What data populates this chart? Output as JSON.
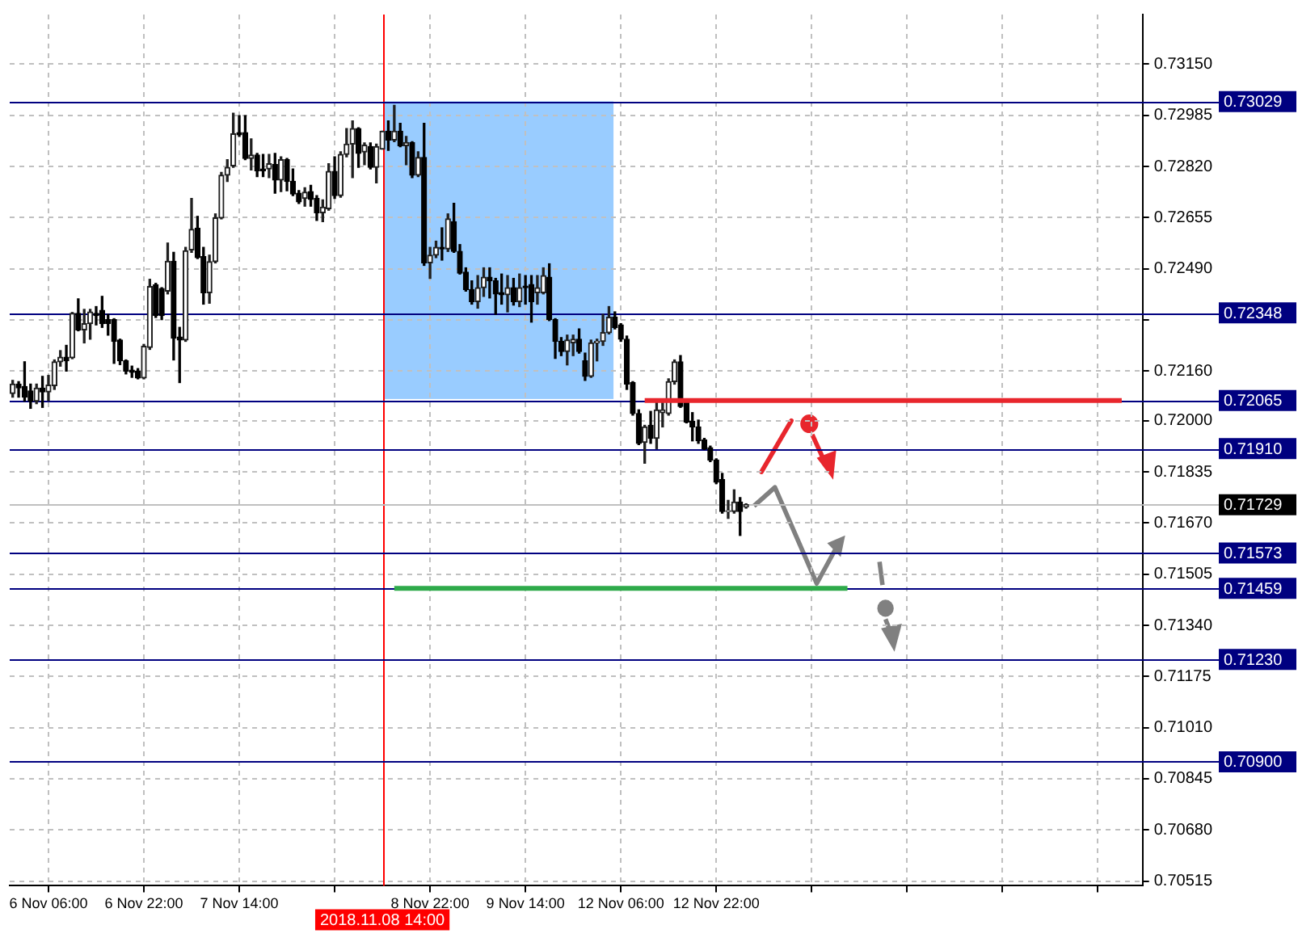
{
  "chart_data": {
    "type": "candlestick",
    "categories": [
      null,
      null,
      null,
      null,
      null,
      null,
      "6 Nov 06:00",
      null,
      null,
      null,
      null,
      null,
      null,
      null,
      null,
      null,
      null,
      null,
      null,
      null,
      null,
      null,
      "6 Nov 22:00",
      null,
      null,
      null,
      null,
      null,
      null,
      null,
      null,
      null,
      null,
      null,
      null,
      null,
      null,
      null,
      "7 Nov 14:00",
      null,
      null,
      null,
      null,
      null,
      null,
      null,
      null,
      null,
      null,
      null,
      null,
      null,
      null,
      null,
      null,
      null,
      null,
      null,
      null,
      null,
      null,
      null,
      "2018.11.08 14:00",
      null,
      null,
      null,
      null,
      null,
      null,
      null,
      "8 Nov 22:00",
      null,
      null,
      null,
      null,
      null,
      null,
      null,
      null,
      null,
      null,
      null,
      null,
      null,
      null,
      null,
      "9 Nov 14:00",
      null,
      null,
      null,
      null,
      null,
      null,
      null,
      null,
      null,
      null,
      null,
      null,
      null,
      null,
      null,
      "12 Nov 06:00",
      null,
      null,
      null,
      null,
      null,
      null,
      null,
      null,
      null,
      null,
      null,
      null,
      null,
      null,
      null,
      "12 Nov 22:00",
      null,
      null,
      null,
      null,
      null,
      null,
      null,
      null,
      null,
      null,
      null,
      null,
      null,
      null,
      null,
      null,
      null,
      null,
      null,
      null,
      null,
      null,
      null,
      null,
      null,
      null,
      null,
      null,
      null,
      null,
      null,
      null,
      null,
      null,
      null,
      null,
      null,
      null,
      null,
      null,
      null,
      null,
      null,
      null,
      null,
      null,
      null,
      null,
      null,
      null,
      null,
      null,
      null,
      null,
      null,
      null,
      null,
      null,
      null,
      null,
      null,
      null,
      null,
      null,
      null,
      null,
      null,
      null,
      null,
      null,
      null
    ],
    "ohlc": [
      [
        0.72088,
        0.7213,
        0.72076,
        0.72118
      ],
      [
        0.72118,
        0.72126,
        0.72076,
        0.72106
      ],
      [
        0.7211,
        0.7219,
        0.72063,
        0.72076
      ],
      [
        0.72096,
        0.72118,
        0.7204,
        0.72063
      ],
      [
        0.72063,
        0.72118,
        0.72055,
        0.72105
      ],
      [
        0.72105,
        0.72143,
        0.72043,
        0.72093
      ],
      [
        0.72093,
        0.72146,
        0.72065,
        0.72115
      ],
      [
        0.72113,
        0.72196,
        0.72101,
        0.7219
      ],
      [
        0.7219,
        0.72226,
        0.72176,
        0.72205
      ],
      [
        0.72205,
        0.72243,
        0.7216,
        0.72193
      ],
      [
        0.72203,
        0.72349,
        0.722,
        0.72346
      ],
      [
        0.72346,
        0.72393,
        0.7229,
        0.72293
      ],
      [
        0.72293,
        0.72359,
        0.72251,
        0.72313
      ],
      [
        0.72313,
        0.72359,
        0.72263,
        0.72351
      ],
      [
        0.72346,
        0.72368,
        0.72309,
        0.72339
      ],
      [
        0.72356,
        0.72401,
        0.72301,
        0.72313
      ],
      [
        0.72326,
        0.72343,
        0.72276,
        0.72314
      ],
      [
        0.72326,
        0.72329,
        0.72185,
        0.72256
      ],
      [
        0.7226,
        0.72263,
        0.72181,
        0.72193
      ],
      [
        0.72193,
        0.72196,
        0.72151,
        0.7216
      ],
      [
        0.72163,
        0.72176,
        0.7214,
        0.72156
      ],
      [
        0.7216,
        0.72168,
        0.72135,
        0.72138
      ],
      [
        0.72138,
        0.72246,
        0.72135,
        0.7224
      ],
      [
        0.72236,
        0.72456,
        0.7223,
        0.72433
      ],
      [
        0.72438,
        0.72443,
        0.72333,
        0.72339
      ],
      [
        0.72426,
        0.72429,
        0.72326,
        0.72339
      ],
      [
        0.72418,
        0.72573,
        0.72409,
        0.72514
      ],
      [
        0.72514,
        0.72543,
        0.72196,
        0.72266
      ],
      [
        0.7227,
        0.72301,
        0.72123,
        0.7226
      ],
      [
        0.7226,
        0.72559,
        0.72256,
        0.72548
      ],
      [
        0.72551,
        0.72717,
        0.72543,
        0.72617
      ],
      [
        0.72621,
        0.72659,
        0.72523,
        0.72526
      ],
      [
        0.72529,
        0.72559,
        0.72376,
        0.72413
      ],
      [
        0.72413,
        0.72534,
        0.72379,
        0.72513
      ],
      [
        0.72513,
        0.72667,
        0.72509,
        0.72654
      ],
      [
        0.72654,
        0.72801,
        0.72651,
        0.72792
      ],
      [
        0.72792,
        0.72842,
        0.72772,
        0.72817
      ],
      [
        0.72822,
        0.72992,
        0.72817,
        0.72925
      ],
      [
        0.72929,
        0.72984,
        0.72917,
        0.72922
      ],
      [
        0.72929,
        0.72984,
        0.72842,
        0.72846
      ],
      [
        0.72846,
        0.72909,
        0.72809,
        0.72857
      ],
      [
        0.72857,
        0.72862,
        0.72787,
        0.72806
      ],
      [
        0.72812,
        0.72859,
        0.72787,
        0.72806
      ],
      [
        0.72812,
        0.72859,
        0.72784,
        0.72829
      ],
      [
        0.72826,
        0.72862,
        0.72734,
        0.72776
      ],
      [
        0.72776,
        0.72851,
        0.72739,
        0.72842
      ],
      [
        0.72842,
        0.72846,
        0.72742,
        0.72772
      ],
      [
        0.72772,
        0.72812,
        0.72726,
        0.72731
      ],
      [
        0.72734,
        0.72742,
        0.72701,
        0.72706
      ],
      [
        0.72717,
        0.72751,
        0.72692,
        0.72737
      ],
      [
        0.72739,
        0.72759,
        0.72692,
        0.72714
      ],
      [
        0.72717,
        0.72726,
        0.72646,
        0.72671
      ],
      [
        0.72671,
        0.72712,
        0.72642,
        0.72689
      ],
      [
        0.72684,
        0.72829,
        0.72679,
        0.72804
      ],
      [
        0.72804,
        0.72851,
        0.72717,
        0.72726
      ],
      [
        0.72726,
        0.72867,
        0.72721,
        0.72859
      ],
      [
        0.72859,
        0.72942,
        0.72851,
        0.72892
      ],
      [
        0.72892,
        0.72967,
        0.72784,
        0.72942
      ],
      [
        0.72942,
        0.72945,
        0.72817,
        0.72862
      ],
      [
        0.72867,
        0.72896,
        0.72826,
        0.72889
      ],
      [
        0.72884,
        0.72896,
        0.72812,
        0.72817
      ],
      [
        0.72817,
        0.72892,
        0.72767,
        0.72884
      ],
      [
        0.72876,
        0.72934,
        0.72876,
        0.72934
      ],
      [
        0.72934,
        0.72967,
        0.72872,
        0.72905
      ],
      [
        0.72905,
        0.73017,
        0.729,
        0.72934
      ],
      [
        0.72934,
        0.72959,
        0.72884,
        0.72887
      ],
      [
        0.72887,
        0.72917,
        0.72826,
        0.72897
      ],
      [
        0.72897,
        0.729,
        0.72784,
        0.72792
      ],
      [
        0.72792,
        0.72867,
        0.72787,
        0.72849
      ],
      [
        0.72849,
        0.72959,
        0.72501,
        0.72509
      ],
      [
        0.72509,
        0.72559,
        0.72459,
        0.72534
      ],
      [
        0.72534,
        0.72579,
        0.72526,
        0.72559
      ],
      [
        0.72559,
        0.72622,
        0.72518,
        0.72554
      ],
      [
        0.72554,
        0.72667,
        0.72546,
        0.72651
      ],
      [
        0.72642,
        0.72701,
        0.72543,
        0.72546
      ],
      [
        0.72546,
        0.72568,
        0.72473,
        0.72476
      ],
      [
        0.72479,
        0.72493,
        0.72418,
        0.72423
      ],
      [
        0.72423,
        0.72451,
        0.72376,
        0.72384
      ],
      [
        0.72384,
        0.72468,
        0.72363,
        0.72429
      ],
      [
        0.72429,
        0.72493,
        0.72401,
        0.72463
      ],
      [
        0.72463,
        0.72493,
        0.72396,
        0.72451
      ],
      [
        0.72451,
        0.72459,
        0.72343,
        0.72409
      ],
      [
        0.72413,
        0.72473,
        0.72376,
        0.72406
      ],
      [
        0.72406,
        0.72468,
        0.72351,
        0.72429
      ],
      [
        0.72429,
        0.72459,
        0.72373,
        0.72384
      ],
      [
        0.72384,
        0.72473,
        0.72368,
        0.72429
      ],
      [
        0.72434,
        0.72468,
        0.72376,
        0.72429
      ],
      [
        0.72439,
        0.72468,
        0.72318,
        0.72384
      ],
      [
        0.72413,
        0.72468,
        0.72376,
        0.72429
      ],
      [
        0.72413,
        0.72493,
        0.72409,
        0.72468
      ],
      [
        0.72463,
        0.72506,
        0.72323,
        0.72326
      ],
      [
        0.72326,
        0.72329,
        0.72201,
        0.72256
      ],
      [
        0.72256,
        0.72268,
        0.7221,
        0.72223
      ],
      [
        0.72223,
        0.72276,
        0.7218,
        0.7226
      ],
      [
        0.72251,
        0.72276,
        0.7221,
        0.72263
      ],
      [
        0.72263,
        0.72296,
        0.72218,
        0.72223
      ],
      [
        0.72193,
        0.72218,
        0.7213,
        0.72143
      ],
      [
        0.72143,
        0.7226,
        0.7214,
        0.72251
      ],
      [
        0.72251,
        0.72263,
        0.72193,
        0.72256
      ],
      [
        0.72256,
        0.72343,
        0.72243,
        0.72284
      ],
      [
        0.72284,
        0.72368,
        0.7228,
        0.72334
      ],
      [
        0.72334,
        0.72351,
        0.72296,
        0.72301
      ],
      [
        0.72309,
        0.72313,
        0.72256,
        0.72263
      ],
      [
        0.72263,
        0.72273,
        0.72101,
        0.72118
      ],
      [
        0.72123,
        0.72126,
        0.72018,
        0.72023
      ],
      [
        0.72023,
        0.72035,
        0.71923,
        0.71927
      ],
      [
        0.7193,
        0.71985,
        0.71863,
        0.7198
      ],
      [
        0.71985,
        0.7203,
        0.71927,
        0.71943
      ],
      [
        0.71943,
        0.72063,
        0.7191,
        0.72035
      ],
      [
        0.72026,
        0.7206,
        0.7198,
        0.72035
      ],
      [
        0.72023,
        0.72135,
        0.72018,
        0.72126
      ],
      [
        0.72126,
        0.72196,
        0.72118,
        0.7219
      ],
      [
        0.7219,
        0.7221,
        0.72043,
        0.72046
      ],
      [
        0.7206,
        0.72063,
        0.71993,
        0.71996
      ],
      [
        0.71998,
        0.72026,
        0.71935,
        0.7198
      ],
      [
        0.7198,
        0.72002,
        0.71927,
        0.71935
      ],
      [
        0.71938,
        0.71943,
        0.71907,
        0.7191
      ],
      [
        0.71913,
        0.71918,
        0.71868,
        0.71873
      ],
      [
        0.71873,
        0.71877,
        0.71797,
        0.71802
      ],
      [
        0.7181,
        0.7183,
        0.71702,
        0.71707
      ],
      [
        0.71707,
        0.71743,
        0.71685,
        0.7171
      ],
      [
        0.71707,
        0.71777,
        0.71702,
        0.71738
      ],
      [
        0.71738,
        0.71752,
        0.7163,
        0.71707
      ],
      [
        0.71722,
        0.71732,
        0.71718,
        0.71729
      ],
      null,
      null,
      null,
      null,
      null,
      null,
      null,
      null,
      null,
      null,
      null,
      null,
      null,
      null,
      null,
      null,
      null,
      null,
      null,
      null,
      null,
      null,
      null,
      null,
      null,
      null,
      null,
      null,
      null,
      null,
      null,
      null,
      null,
      null,
      null,
      null,
      null,
      null,
      null,
      null,
      null,
      null,
      null,
      null,
      null,
      null,
      null,
      null,
      null,
      null,
      null,
      null,
      null,
      null,
      null,
      null,
      null,
      null,
      null,
      null,
      null,
      null,
      null,
      null,
      null,
      null
    ],
    "series": [
      {
        "type": "line",
        "color": "#e8262d",
        "values": [
          null,
          null,
          null,
          null,
          null,
          null,
          null,
          null,
          null,
          null,
          null,
          null,
          null,
          null,
          null,
          null,
          null,
          null,
          null,
          null,
          null,
          null,
          null,
          null,
          null,
          null,
          null,
          null,
          null,
          null,
          null,
          null,
          null,
          null,
          null,
          null,
          null,
          null,
          null,
          null,
          null,
          null,
          null,
          null,
          null,
          null,
          null,
          null,
          null,
          null,
          null,
          null,
          null,
          null,
          null,
          null,
          null,
          null,
          null,
          null,
          null,
          null,
          null,
          null,
          null,
          null,
          null,
          null,
          null,
          null,
          null,
          null,
          null,
          null,
          null,
          null,
          null,
          null,
          null,
          null,
          null,
          null,
          null,
          null,
          null,
          null,
          null,
          null,
          null,
          null,
          null,
          null,
          null,
          null,
          null,
          null,
          null,
          null,
          null,
          null,
          null,
          null,
          null,
          null,
          null,
          null,
          0.72065,
          null,
          null,
          null,
          null,
          null,
          null,
          null,
          null,
          null,
          null,
          null,
          null,
          null,
          null,
          null,
          null,
          null,
          null,
          null,
          null,
          null,
          null,
          null,
          null,
          null,
          null,
          null,
          null,
          null,
          null,
          null,
          null,
          null,
          null,
          null,
          null,
          null,
          null,
          null,
          null,
          null,
          null,
          null,
          null,
          null,
          null,
          null,
          null,
          null,
          null,
          null,
          null,
          null,
          null,
          null,
          null,
          null,
          null,
          null,
          null,
          null,
          null,
          null,
          null,
          null,
          null,
          null,
          null,
          null,
          null,
          null,
          null,
          null,
          null,
          null,
          null,
          null,
          null,
          null,
          0.72065,
          null,
          null,
          null
        ]
      },
      {
        "type": "line",
        "color": "#2eaa4a",
        "values": [
          null,
          null,
          null,
          null,
          null,
          null,
          null,
          null,
          null,
          null,
          null,
          null,
          null,
          null,
          null,
          null,
          null,
          null,
          null,
          null,
          null,
          null,
          null,
          null,
          null,
          null,
          null,
          null,
          null,
          null,
          null,
          null,
          null,
          null,
          null,
          null,
          null,
          null,
          null,
          null,
          null,
          null,
          null,
          null,
          null,
          null,
          null,
          null,
          null,
          null,
          null,
          null,
          null,
          null,
          null,
          null,
          null,
          null,
          null,
          null,
          null,
          null,
          null,
          null,
          0.71459,
          null,
          null,
          null,
          null,
          null,
          null,
          null,
          null,
          null,
          null,
          null,
          null,
          null,
          null,
          null,
          null,
          null,
          null,
          null,
          null,
          null,
          null,
          null,
          null,
          null,
          null,
          null,
          null,
          null,
          null,
          null,
          null,
          null,
          null,
          null,
          null,
          null,
          null,
          null,
          null,
          null,
          null,
          null,
          null,
          null,
          null,
          null,
          null,
          null,
          null,
          null,
          null,
          null,
          null,
          null,
          null,
          null,
          null,
          null,
          null,
          null,
          null,
          null,
          null,
          null,
          null,
          null,
          null,
          null,
          null,
          null,
          null,
          null,
          null,
          null,
          0.71459,
          null,
          null,
          null,
          null,
          null,
          null,
          null,
          null,
          null,
          null,
          null,
          null,
          null,
          null,
          null,
          null,
          null,
          null,
          null,
          null,
          null,
          null,
          null,
          null,
          null,
          null,
          null,
          null,
          null,
          null,
          null,
          null,
          null,
          null,
          null,
          null,
          null,
          null,
          null,
          null,
          null,
          null,
          null,
          null,
          null,
          null,
          null,
          null,
          null
        ]
      }
    ],
    "ylim": [
      0.705,
      0.7331
    ],
    "yticks": [
      {
        "value": 0.7315,
        "label": "0.73150"
      },
      {
        "value": 0.72985,
        "label": "0.72985"
      },
      {
        "value": 0.7282,
        "label": "0.72820"
      },
      {
        "value": 0.72655,
        "label": "0.72655"
      },
      {
        "value": 0.7249,
        "label": "0.72490"
      },
      {
        "value": 0.72325,
        "label": null
      },
      {
        "value": 0.7216,
        "label": "0.72160"
      },
      {
        "value": 0.72,
        "label": "0.72000"
      },
      {
        "value": 0.71835,
        "label": "0.71835"
      },
      {
        "value": 0.7167,
        "label": "0.71670"
      },
      {
        "value": 0.71505,
        "label": "0.71505"
      },
      {
        "value": 0.7134,
        "label": "0.71340"
      },
      {
        "value": 0.71175,
        "label": "0.71175"
      },
      {
        "value": 0.7101,
        "label": "0.71010"
      },
      {
        "value": 0.70845,
        "label": "0.70845"
      },
      {
        "value": 0.7068,
        "label": "0.70680"
      },
      {
        "value": 0.70515,
        "label": "0.70515"
      }
    ],
    "ref_lines": [
      {
        "axis": "x",
        "value": "2018.11.08 14:00",
        "color": "#ff0000"
      },
      {
        "axis": "y",
        "value": 0.73029,
        "label": "0.73029",
        "color": "#000080"
      },
      {
        "axis": "y",
        "value": 0.72348,
        "label": "0.72348",
        "color": "#000080"
      },
      {
        "axis": "y",
        "value": 0.72065,
        "label": "0.72065",
        "color": "#000080"
      },
      {
        "axis": "y",
        "value": 0.7191,
        "label": "0.71910",
        "color": "#000080"
      },
      {
        "axis": "y",
        "value": 0.71729,
        "label": "0.71729",
        "color": "#c0c0c0"
      },
      {
        "axis": "y",
        "value": 0.71573,
        "label": "0.71573",
        "color": "#000080"
      },
      {
        "axis": "y",
        "value": 0.71459,
        "label": "0.71459",
        "color": "#000080"
      },
      {
        "axis": "y",
        "value": 0.7123,
        "label": "0.71230",
        "color": "#000080"
      },
      {
        "axis": "y",
        "value": 0.709,
        "label": "0.70900",
        "color": "#000080"
      }
    ],
    "grid": true
  }
}
